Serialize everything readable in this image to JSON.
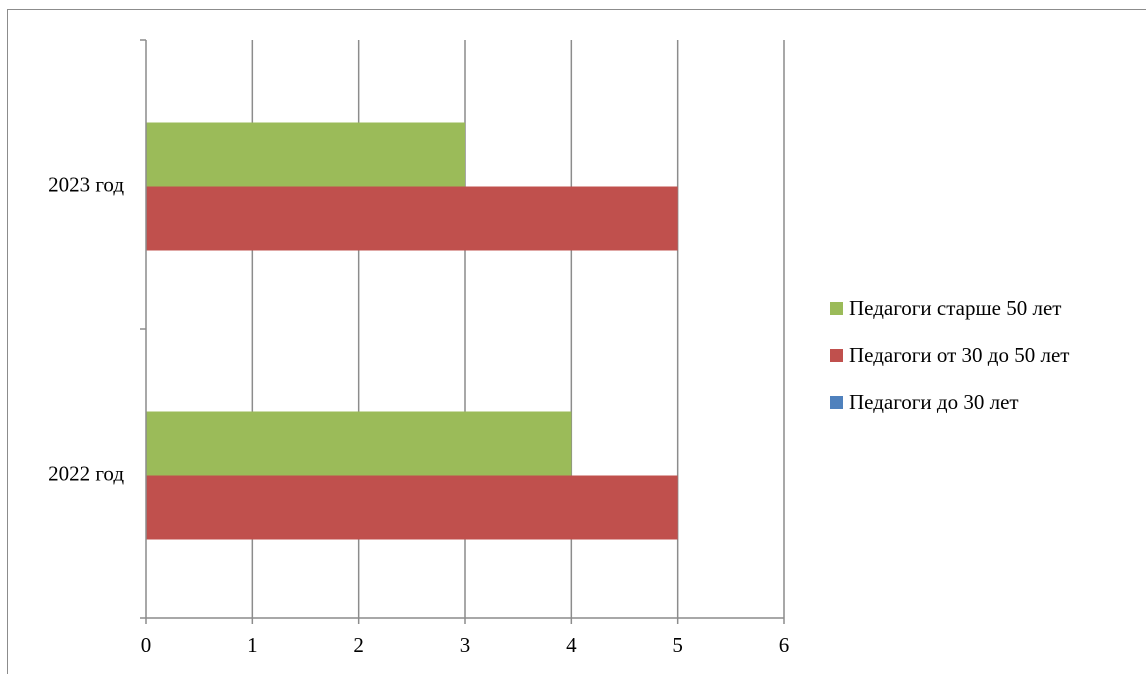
{
  "chart_data": {
    "type": "bar",
    "orientation": "horizontal",
    "categories": [
      "2022 год",
      "2023 год"
    ],
    "series": [
      {
        "name": "Педагоги до 30 лет",
        "color": "#4f81bd",
        "values": [
          0,
          0
        ]
      },
      {
        "name": "Педагоги от 30 до 50 лет",
        "color": "#c0504d",
        "values": [
          5,
          5
        ]
      },
      {
        "name": "Педагоги старше 50 лет",
        "color": "#9bbb59",
        "values": [
          4,
          3
        ]
      }
    ],
    "xlim": [
      0,
      6
    ],
    "xticks": [
      0,
      1,
      2,
      3,
      4,
      5,
      6
    ],
    "grid": true,
    "legend": {
      "position": "right",
      "order": [
        "Педагоги старше 50 лет",
        "Педагоги от 30 до 50 лет",
        "Педагоги до 30 лет"
      ]
    }
  }
}
